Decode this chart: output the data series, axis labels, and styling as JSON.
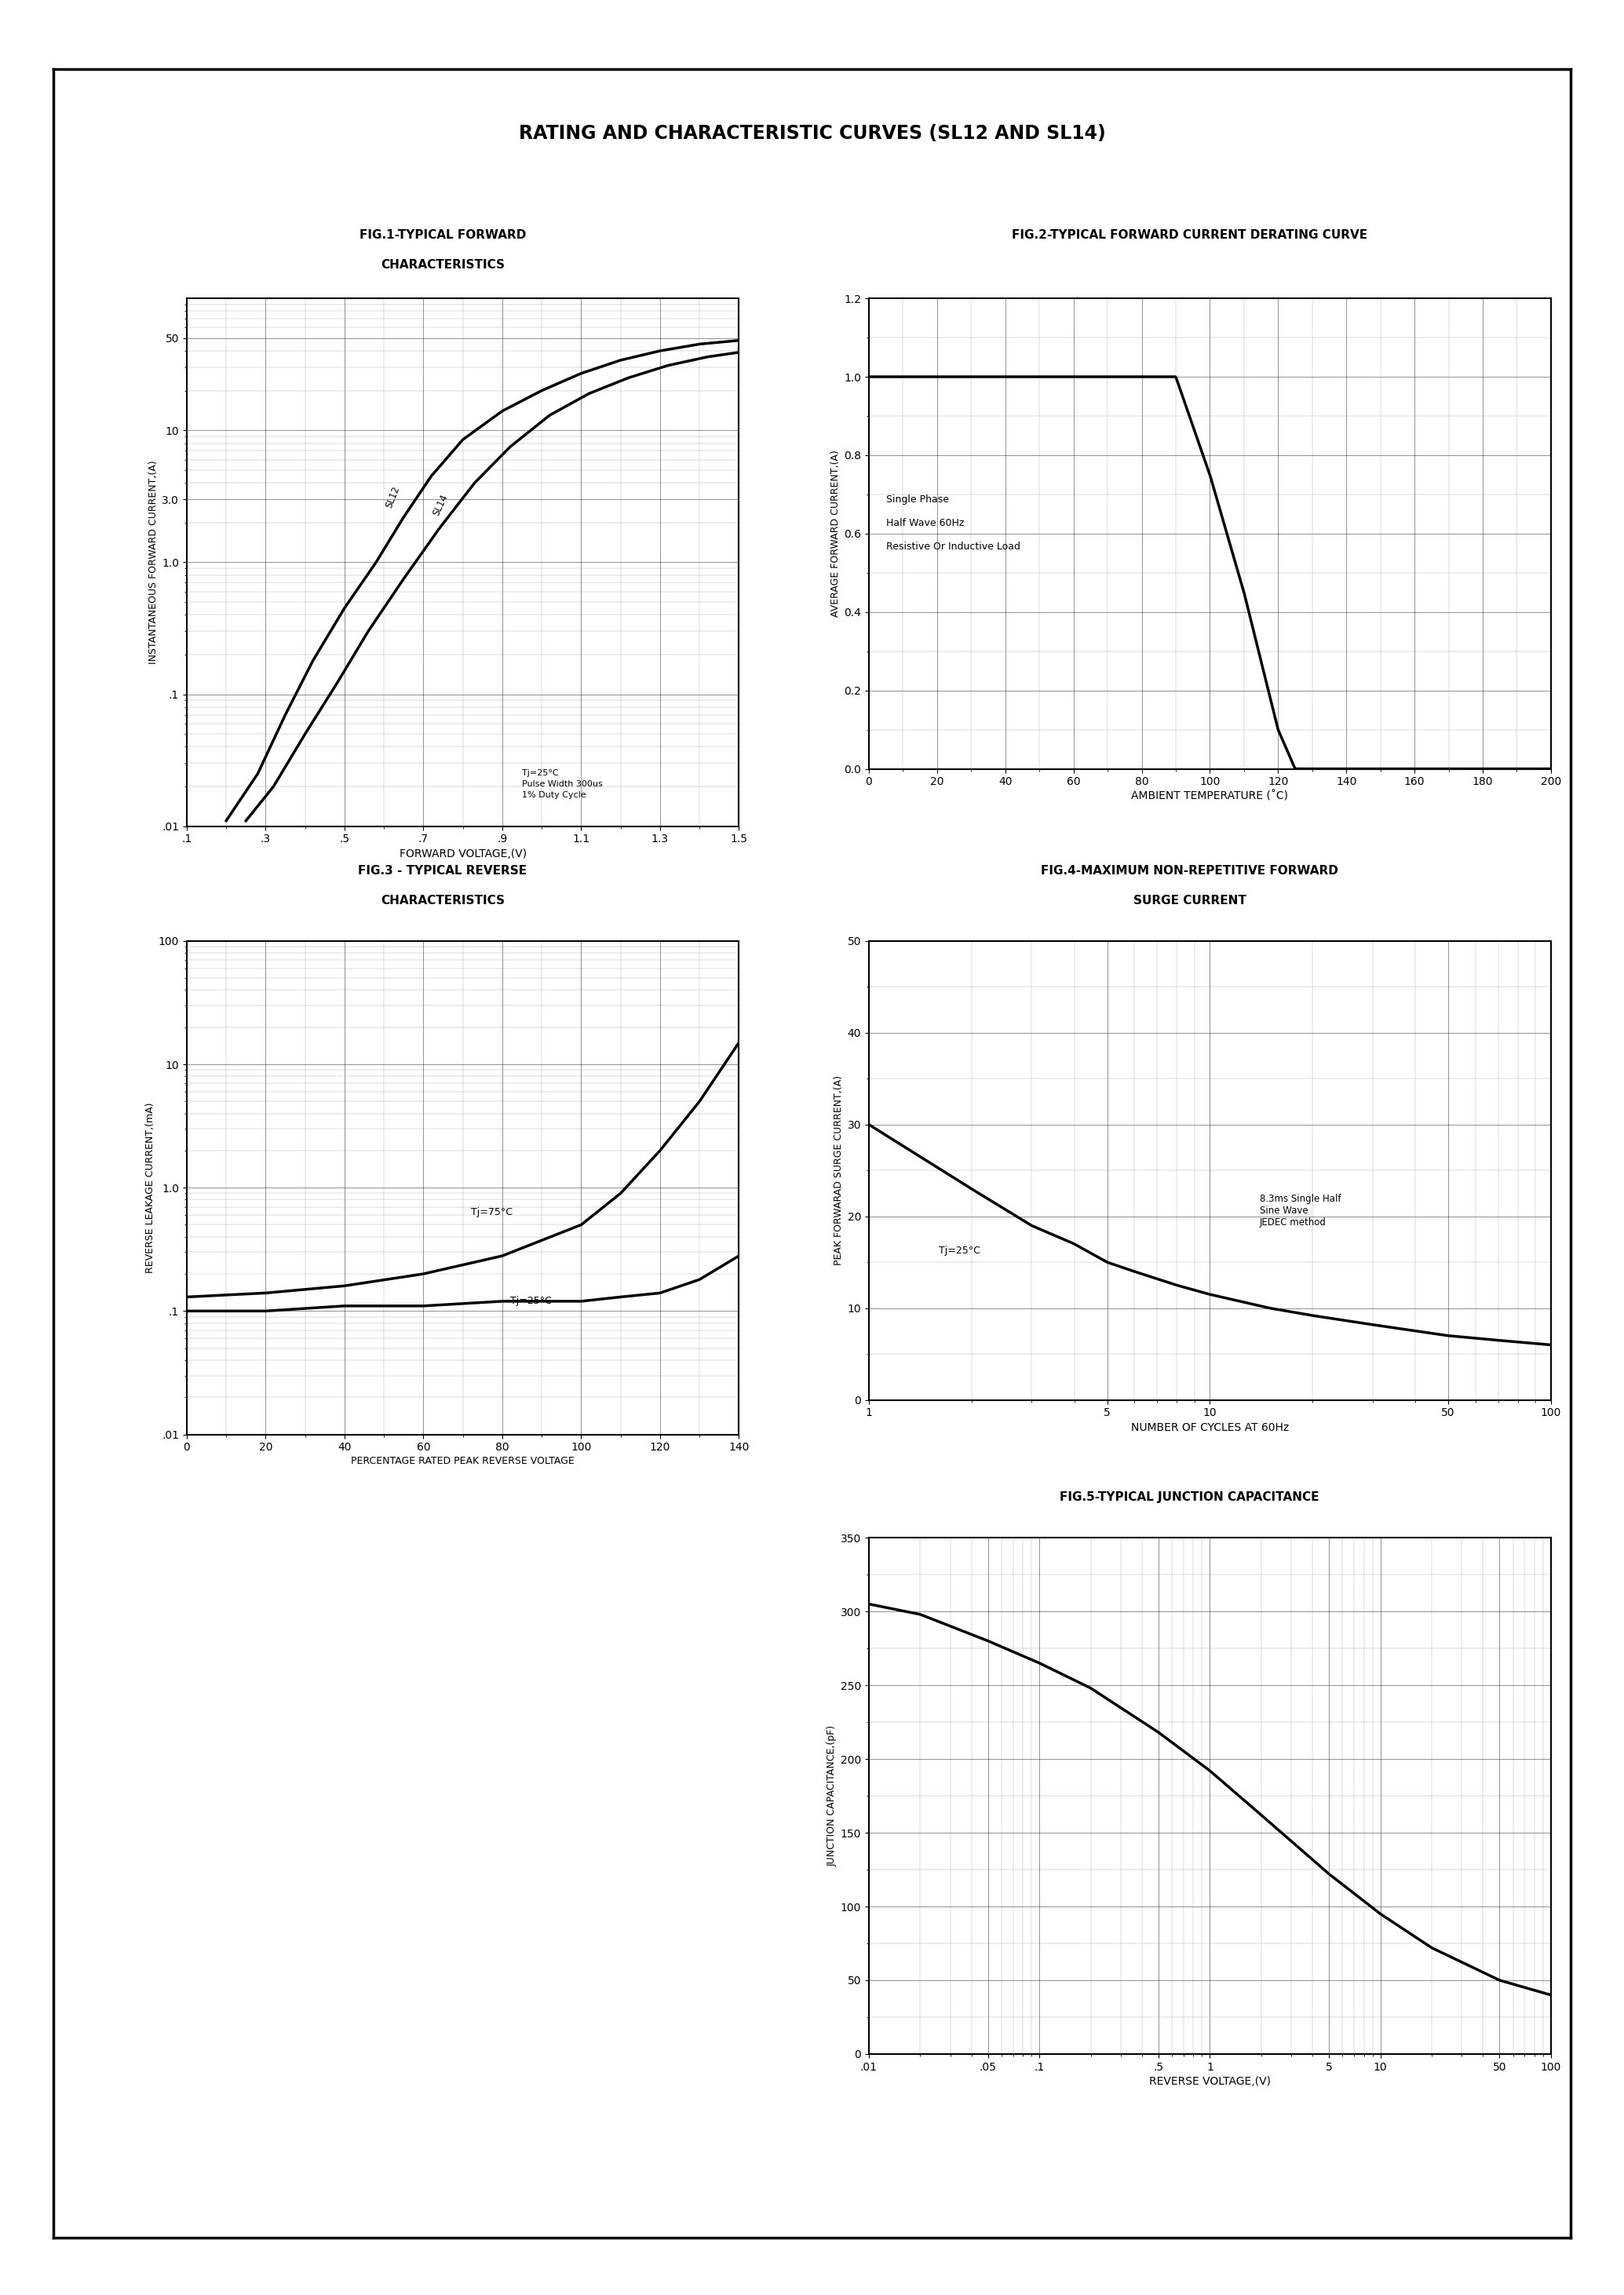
{
  "title": "RATING AND CHARACTERISTIC CURVES (SL12 AND SL14)",
  "fig1_title1": "FIG.1-TYPICAL FORWARD",
  "fig1_title2": "CHARACTERISTICS",
  "fig1_xlabel": "FORWARD VOLTAGE,(V)",
  "fig1_ylabel": "INSTANTANEOUS FORWARD CURRENT,(A)",
  "fig1_note": "Tj=25°C\nPulse Width 300us\n1% Duty Cycle",
  "fig2_title": "FIG.2-TYPICAL FORWARD CURRENT DERATING CURVE",
  "fig2_xlabel": "AMBIENT TEMPERATURE (˚C)",
  "fig2_ylabel": "AVERAGE FORWARD CURRENT,(A)",
  "fig2_legend": [
    "Single Phase",
    "Half Wave 60Hz",
    "Resistive Or Inductive Load"
  ],
  "fig3_title1": "FIG.3 - TYPICAL REVERSE",
  "fig3_title2": "CHARACTERISTICS",
  "fig3_xlabel": "PERCENTAGE RATED PEAK REVERSE VOLTAGE",
  "fig3_ylabel": "REVERSE LEAKAGE CURRENT,(mA)",
  "fig3_label1": "Tj=75°C",
  "fig3_label2": "Tj=25°C",
  "fig4_title1": "FIG.4-MAXIMUM NON-REPETITIVE FORWARD",
  "fig4_title2": "SURGE CURRENT",
  "fig4_xlabel": "NUMBER OF CYCLES AT 60Hz",
  "fig4_ylabel": "PEAK FORWARAD SURGE CURRENT,(A)",
  "fig4_ann1": "Tj=25°C",
  "fig4_ann2": "8.3ms Single Half\nSine Wave\nJEDEC method",
  "fig5_title": "FIG.5-TYPICAL JUNCTION CAPACITANCE",
  "fig5_xlabel": "REVERSE VOLTAGE,(V)",
  "fig5_ylabel": "JUNCTION CAPACITANCE,(pF)"
}
